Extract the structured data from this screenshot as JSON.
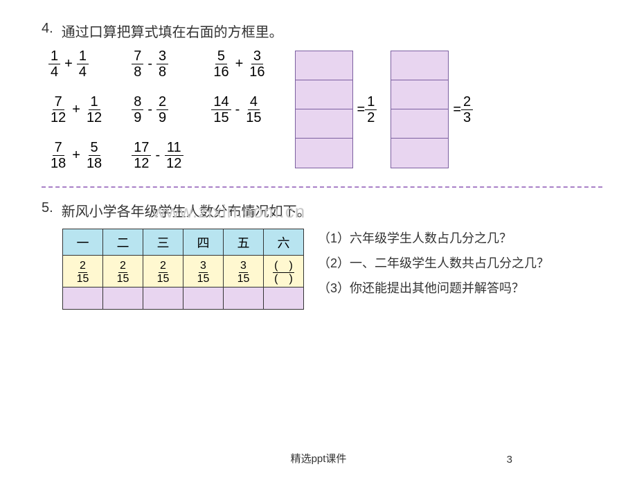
{
  "problem4": {
    "number": "4.",
    "text": "通过口算把算式填在右面的方框里。",
    "expressions": [
      {
        "a_num": "1",
        "a_den": "4",
        "op": "+",
        "b_num": "1",
        "b_den": "4"
      },
      {
        "a_num": "7",
        "a_den": "8",
        "op": "-",
        "b_num": "3",
        "b_den": "8"
      },
      {
        "a_num": "5",
        "a_den": "16",
        "op": "+",
        "b_num": "3",
        "b_den": "16"
      },
      {
        "a_num": "7",
        "a_den": "12",
        "op": "+",
        "b_num": "1",
        "b_den": "12"
      },
      {
        "a_num": "8",
        "a_den": "9",
        "op": "-",
        "b_num": "2",
        "b_den": "9"
      },
      {
        "a_num": "14",
        "a_den": "15",
        "op": "-",
        "b_num": "4",
        "b_den": "15"
      },
      {
        "a_num": "7",
        "a_den": "18",
        "op": "+",
        "b_num": "5",
        "b_den": "18"
      },
      {
        "a_num": "17",
        "a_den": "12",
        "op": "-",
        "b_num": "11",
        "b_den": "12"
      }
    ],
    "results": [
      {
        "num": "1",
        "den": "2"
      },
      {
        "num": "2",
        "den": "3"
      }
    ],
    "box_rows": 4,
    "box_color": "#e8d5f0",
    "box_border": "#7b5fa0"
  },
  "problem5": {
    "number": "5.",
    "text": "新风小学各年级学生人数分布情况如下。",
    "table": {
      "headers": [
        "一",
        "二",
        "三",
        "四",
        "五",
        "六"
      ],
      "header_bg": "#b8e4f0",
      "frac_bg": "#fff8d0",
      "empty_bg": "#e8d5f0",
      "fractions": [
        {
          "num": "2",
          "den": "15"
        },
        {
          "num": "2",
          "den": "15"
        },
        {
          "num": "2",
          "den": "15"
        },
        {
          "num": "3",
          "den": "15"
        },
        {
          "num": "3",
          "den": "15"
        },
        {
          "num": "(　)",
          "den": "(　)"
        }
      ]
    },
    "questions": [
      "（1）六年级学生人数占几分之几？",
      "（2）一、二年级学生人数共占几分之几？",
      "（3）你还能提出其他问题并解答吗？"
    ]
  },
  "watermark": "www.zixin.com.cn",
  "footer_text": "精选ppt课件",
  "page_number": "3",
  "colors": {
    "background": "#ffffff",
    "text": "#000000",
    "separator": "#a87fc7",
    "watermark": "#c8c8c8"
  }
}
